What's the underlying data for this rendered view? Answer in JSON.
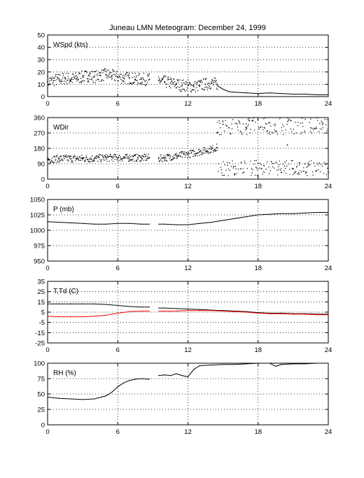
{
  "title": "Juneau LMN Meteogram:  December 24, 1999",
  "chart_data": [
    {
      "type": "scatter",
      "label": "WSpd (kts)",
      "xlim": [
        0,
        24
      ],
      "ylim": [
        0,
        50
      ],
      "xticks": [
        "0",
        "6",
        "12",
        "18",
        "24"
      ],
      "yticks": [
        "0",
        "10",
        "20",
        "30",
        "40",
        "50"
      ],
      "grid": true,
      "series": [
        {
          "color": "#000000",
          "style": "dots",
          "x": [
            0,
            0.5,
            1,
            1.5,
            2,
            2.5,
            3,
            3.5,
            4,
            4.5,
            5,
            5.5,
            6,
            6.5,
            7,
            7.5,
            8,
            8.7
          ],
          "y": [
            12,
            13,
            14,
            15,
            14,
            15,
            16,
            17,
            16,
            17,
            18,
            17,
            16,
            15,
            15,
            14,
            14,
            14
          ]
        },
        {
          "color": "#000000",
          "style": "dots",
          "x": [
            9.5,
            10,
            10.5,
            11,
            11.5,
            12,
            12.5,
            13,
            13.5,
            14,
            14.5
          ],
          "y": [
            13,
            12,
            11,
            10,
            9,
            9,
            8,
            9,
            10,
            11,
            10
          ]
        },
        {
          "color": "#000000",
          "style": "line",
          "x": [
            14.5,
            15,
            15.5,
            16,
            17,
            18,
            19,
            20,
            21,
            22,
            23,
            24
          ],
          "y": [
            9,
            6,
            4,
            3.5,
            3,
            2.5,
            3,
            2.5,
            2,
            2,
            1.5,
            1.5
          ]
        }
      ]
    },
    {
      "type": "scatter",
      "label": "WDir",
      "xlim": [
        0,
        24
      ],
      "ylim": [
        0,
        360
      ],
      "xticks": [
        "0",
        "6",
        "12",
        "18",
        "24"
      ],
      "yticks": [
        "0",
        "90",
        "180",
        "270",
        "360"
      ],
      "grid": true,
      "series": [
        {
          "color": "#000000",
          "style": "dots",
          "x": [
            0,
            1,
            2,
            3,
            4,
            5,
            6,
            7,
            8,
            8.7
          ],
          "y": [
            115,
            120,
            120,
            120,
            120,
            125,
            125,
            125,
            125,
            125
          ]
        },
        {
          "color": "#000000",
          "style": "dots",
          "x": [
            9.5,
            10,
            11,
            12,
            13,
            14,
            14.5
          ],
          "y": [
            120,
            125,
            135,
            145,
            160,
            175,
            185
          ]
        },
        {
          "color": "#000000",
          "style": "dots",
          "x": [
            14.5,
            15,
            15.5,
            16,
            16.5,
            17,
            17.5,
            18,
            18.5,
            19,
            19.5,
            20,
            20.5,
            21,
            21.5,
            22,
            22.5,
            23,
            23.5,
            24
          ],
          "y": [
            270,
            320,
            300,
            30,
            60,
            300,
            340,
            20,
            80,
            330,
            280,
            40,
            200,
            60,
            30,
            90,
            300,
            50,
            320,
            40
          ]
        }
      ]
    },
    {
      "type": "line",
      "label": "P (mb)",
      "xlim": [
        0,
        24
      ],
      "ylim": [
        950,
        1050
      ],
      "xticks": [
        "0",
        "6",
        "12",
        "18",
        "24"
      ],
      "yticks": [
        "950",
        "975",
        "1000",
        "1025",
        "1050"
      ],
      "grid": true,
      "series": [
        {
          "color": "#000000",
          "style": "line",
          "x": [
            0,
            1,
            2,
            3,
            4,
            5,
            6,
            7,
            8,
            8.7
          ],
          "y": [
            1014,
            1013,
            1012,
            1011,
            1010,
            1010,
            1011,
            1011,
            1010,
            1010
          ]
        },
        {
          "color": "#000000",
          "style": "line",
          "x": [
            9.5,
            10,
            11,
            12,
            13,
            14,
            15,
            16,
            17,
            18,
            19,
            20,
            21,
            22,
            23,
            24
          ],
          "y": [
            1010,
            1010,
            1009,
            1009,
            1011,
            1013,
            1016,
            1019,
            1022,
            1025,
            1026,
            1027,
            1027,
            1028,
            1029,
            1029
          ]
        }
      ]
    },
    {
      "type": "line",
      "label": "T,Td (C)",
      "xlim": [
        0,
        24
      ],
      "ylim": [
        -25,
        35
      ],
      "xticks": [
        "0",
        "6",
        "12",
        "18",
        "24"
      ],
      "yticks": [
        "-25",
        "-15",
        "-5",
        "5",
        "15",
        "25",
        "35"
      ],
      "grid": true,
      "series": [
        {
          "color": "#000000",
          "style": "line",
          "x": [
            0,
            1,
            2,
            3,
            4,
            5,
            6,
            7,
            8,
            8.7
          ],
          "y": [
            13,
            13,
            13,
            13,
            13,
            12.5,
            11.5,
            10.5,
            10,
            10
          ]
        },
        {
          "color": "#000000",
          "style": "line",
          "x": [
            9.5,
            10,
            11,
            12,
            13,
            14,
            15,
            16,
            17,
            18,
            19,
            20,
            21,
            22,
            23,
            24
          ],
          "y": [
            9,
            9,
            8.5,
            8,
            7.5,
            7,
            6.5,
            6,
            5.5,
            4.5,
            4,
            4,
            3.5,
            3.5,
            3,
            3
          ]
        },
        {
          "color": "#ff0000",
          "style": "line",
          "x": [
            0,
            1,
            2,
            3,
            4,
            5,
            6,
            7,
            8,
            8.7
          ],
          "y": [
            1,
            0.5,
            0.5,
            0.5,
            1,
            2,
            4,
            5.5,
            6,
            6
          ]
        },
        {
          "color": "#ff0000",
          "style": "line",
          "x": [
            9.5,
            10,
            11,
            12,
            13,
            14,
            15,
            16,
            17,
            18,
            19,
            20,
            21,
            22,
            23,
            24
          ],
          "y": [
            6,
            6,
            6,
            6.5,
            6.5,
            6.5,
            6,
            5.5,
            5,
            4,
            3.5,
            3.5,
            3,
            3,
            2.5,
            2.5
          ]
        }
      ]
    },
    {
      "type": "line",
      "label": "RH (%)",
      "xlim": [
        0,
        24
      ],
      "ylim": [
        0,
        100
      ],
      "xticks": [
        "0",
        "6",
        "12",
        "18",
        "24"
      ],
      "yticks": [
        "0",
        "25",
        "50",
        "75",
        "100"
      ],
      "grid": true,
      "series": [
        {
          "color": "#000000",
          "style": "line",
          "x": [
            0,
            1,
            2,
            3,
            4,
            5,
            5.5,
            6,
            6.5,
            7,
            7.5,
            8,
            8.7
          ],
          "y": [
            45,
            43,
            42,
            41,
            42,
            47,
            53,
            62,
            68,
            72,
            74,
            75,
            74
          ]
        },
        {
          "color": "#000000",
          "style": "line",
          "x": [
            9.5,
            10,
            10.5,
            11,
            11.5,
            12,
            12.5,
            13,
            14,
            15,
            16,
            17,
            18,
            19,
            19.5,
            20,
            21,
            22,
            23,
            24
          ],
          "y": [
            80,
            81,
            80,
            83,
            80,
            78,
            90,
            96,
            97,
            98,
            98,
            99,
            100,
            100,
            95,
            98,
            99,
            99,
            100,
            100
          ]
        }
      ]
    }
  ]
}
